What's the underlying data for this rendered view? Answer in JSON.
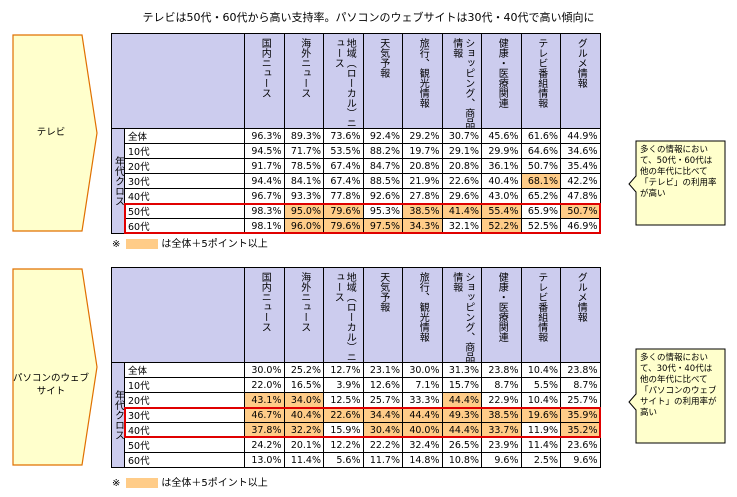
{
  "title": "テレビは50代・60代から高い支持率。パソコンのウェブサイトは30代・40代で高い傾向に",
  "legend_note_prefix": "※",
  "legend_note_text": "は全体＋5ポイント以上",
  "colors": {
    "header": "#ccccee",
    "highlight": "#ffcc88",
    "callout": "#ffffcc",
    "emphasis_border": "#e00000"
  },
  "chart_data": [
    {
      "type": "table",
      "label": "テレビ",
      "side_label": "年代クロス",
      "columns": [
        "国内ニュース",
        "海外ニュース",
        "地域（ローカル）ニュース",
        "天気予報",
        "旅行、観光情報",
        "ショッピング、商品情報",
        "健康・医療関連",
        "テレビ番組情報",
        "グルメ情報"
      ],
      "rows": [
        {
          "label": "全体",
          "values": [
            "96.3%",
            "89.3%",
            "73.6%",
            "92.4%",
            "29.2%",
            "30.7%",
            "45.6%",
            "61.6%",
            "44.9%"
          ],
          "highlight": [
            0,
            0,
            0,
            0,
            0,
            0,
            0,
            0,
            0
          ]
        },
        {
          "label": "10代",
          "values": [
            "94.5%",
            "71.7%",
            "53.5%",
            "88.2%",
            "19.7%",
            "29.1%",
            "29.9%",
            "64.6%",
            "34.6%"
          ],
          "highlight": [
            0,
            0,
            0,
            0,
            0,
            0,
            0,
            0,
            0
          ]
        },
        {
          "label": "20代",
          "values": [
            "91.7%",
            "78.5%",
            "67.4%",
            "84.7%",
            "20.8%",
            "20.8%",
            "36.1%",
            "50.7%",
            "35.4%"
          ],
          "highlight": [
            0,
            0,
            0,
            0,
            0,
            0,
            0,
            0,
            0
          ]
        },
        {
          "label": "30代",
          "values": [
            "94.4%",
            "84.1%",
            "67.4%",
            "88.5%",
            "21.9%",
            "22.6%",
            "40.4%",
            "68.1%",
            "42.2%"
          ],
          "highlight": [
            0,
            0,
            0,
            0,
            0,
            0,
            0,
            1,
            0
          ]
        },
        {
          "label": "40代",
          "values": [
            "96.7%",
            "93.3%",
            "77.8%",
            "92.6%",
            "27.8%",
            "29.6%",
            "43.0%",
            "65.2%",
            "47.8%"
          ],
          "highlight": [
            0,
            0,
            0,
            0,
            0,
            0,
            0,
            0,
            0
          ]
        },
        {
          "label": "50代",
          "values": [
            "98.3%",
            "95.0%",
            "79.6%",
            "95.3%",
            "38.5%",
            "41.4%",
            "55.4%",
            "65.9%",
            "50.7%"
          ],
          "highlight": [
            0,
            1,
            1,
            0,
            1,
            1,
            1,
            0,
            1
          ]
        },
        {
          "label": "60代",
          "values": [
            "98.1%",
            "96.0%",
            "79.6%",
            "97.5%",
            "34.3%",
            "32.1%",
            "52.2%",
            "52.5%",
            "46.9%"
          ],
          "highlight": [
            0,
            1,
            1,
            1,
            1,
            0,
            1,
            0,
            0
          ]
        }
      ],
      "emphasized_rows": [
        "50代",
        "60代"
      ],
      "callout": "多くの情報において、50代・60代は他の年代に比べて「テレビ」の利用率が高い"
    },
    {
      "type": "table",
      "label": "パソコンのウェブサイト",
      "side_label": "年代クロス",
      "columns": [
        "国内ニュース",
        "海外ニュース",
        "地域（ローカル）ニュース",
        "天気予報",
        "旅行、観光情報",
        "ショッピング、商品情報",
        "健康・医療関連",
        "テレビ番組情報",
        "グルメ情報"
      ],
      "rows": [
        {
          "label": "全体",
          "values": [
            "30.0%",
            "25.2%",
            "12.7%",
            "23.1%",
            "30.0%",
            "31.3%",
            "23.8%",
            "10.4%",
            "23.8%"
          ],
          "highlight": [
            0,
            0,
            0,
            0,
            0,
            0,
            0,
            0,
            0
          ]
        },
        {
          "label": "10代",
          "values": [
            "22.0%",
            "16.5%",
            "3.9%",
            "12.6%",
            "7.1%",
            "15.7%",
            "8.7%",
            "5.5%",
            "8.7%"
          ],
          "highlight": [
            0,
            0,
            0,
            0,
            0,
            0,
            0,
            0,
            0
          ]
        },
        {
          "label": "20代",
          "values": [
            "43.1%",
            "34.0%",
            "12.5%",
            "25.7%",
            "33.3%",
            "44.4%",
            "22.9%",
            "10.4%",
            "25.7%"
          ],
          "highlight": [
            1,
            1,
            0,
            0,
            0,
            1,
            0,
            0,
            0
          ]
        },
        {
          "label": "30代",
          "values": [
            "46.7%",
            "40.4%",
            "22.6%",
            "34.4%",
            "44.4%",
            "49.3%",
            "38.5%",
            "19.6%",
            "35.9%"
          ],
          "highlight": [
            1,
            1,
            1,
            1,
            1,
            1,
            1,
            1,
            1
          ]
        },
        {
          "label": "40代",
          "values": [
            "37.8%",
            "32.2%",
            "15.9%",
            "30.4%",
            "40.0%",
            "44.4%",
            "33.7%",
            "11.9%",
            "35.2%"
          ],
          "highlight": [
            1,
            1,
            0,
            1,
            1,
            1,
            1,
            0,
            1
          ]
        },
        {
          "label": "50代",
          "values": [
            "24.2%",
            "20.1%",
            "12.2%",
            "22.2%",
            "32.4%",
            "26.5%",
            "23.9%",
            "11.4%",
            "23.6%"
          ],
          "highlight": [
            0,
            0,
            0,
            0,
            0,
            0,
            0,
            0,
            0
          ]
        },
        {
          "label": "60代",
          "values": [
            "13.0%",
            "11.4%",
            "5.6%",
            "11.7%",
            "14.8%",
            "10.8%",
            "9.6%",
            "2.5%",
            "9.6%"
          ],
          "highlight": [
            0,
            0,
            0,
            0,
            0,
            0,
            0,
            0,
            0
          ]
        }
      ],
      "emphasized_rows": [
        "30代",
        "40代"
      ],
      "callout": "多くの情報において、30代・40代は他の年代に比べて「パソコンのウェブサイト」の利用率が高い"
    }
  ]
}
